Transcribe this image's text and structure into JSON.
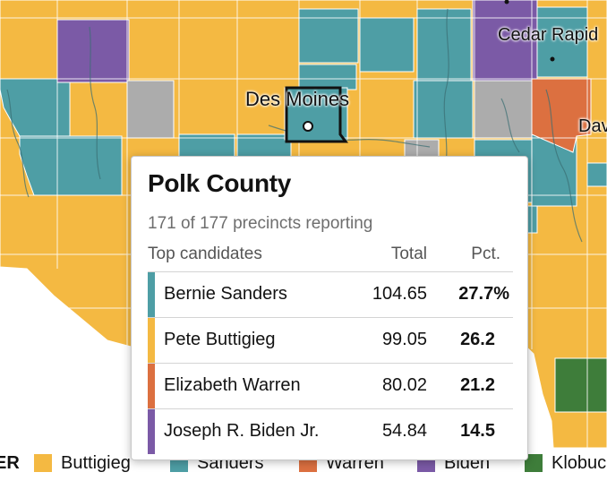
{
  "colors": {
    "buttigieg": "#f4b942",
    "sanders": "#4e9ea5",
    "warren": "#dc7040",
    "biden": "#7b5aa6",
    "klobuchar": "#3e7d3a",
    "tie": "#acacac"
  },
  "map": {
    "cities": {
      "des_moines": "Des Moines",
      "cedar_rapids": "Cedar Rapid",
      "davenport": "Dav"
    }
  },
  "legend": {
    "lead_fragment": "ER",
    "items": [
      {
        "label": "Buttigieg",
        "color_key": "buttigieg"
      },
      {
        "label": "Sanders",
        "color_key": "sanders"
      },
      {
        "label": "Warren",
        "color_key": "warren"
      },
      {
        "label": "Biden",
        "color_key": "biden"
      },
      {
        "label": "Klobuc",
        "color_key": "klobuchar"
      }
    ]
  },
  "tooltip": {
    "county": "Polk County",
    "reporting": "171 of 177 precincts reporting",
    "header": {
      "candidates": "Top candidates",
      "total": "Total",
      "pct": "Pct."
    },
    "candidates": [
      {
        "name": "Bernie Sanders",
        "total": "104.65",
        "pct": "27.7%",
        "color_key": "sanders"
      },
      {
        "name": "Pete Buttigieg",
        "total": "99.05",
        "pct": "26.2",
        "color_key": "buttigieg"
      },
      {
        "name": "Elizabeth Warren",
        "total": "80.02",
        "pct": "21.2",
        "color_key": "warren"
      },
      {
        "name": "Joseph R. Biden Jr.",
        "total": "54.84",
        "pct": "14.5",
        "color_key": "biden"
      }
    ]
  }
}
